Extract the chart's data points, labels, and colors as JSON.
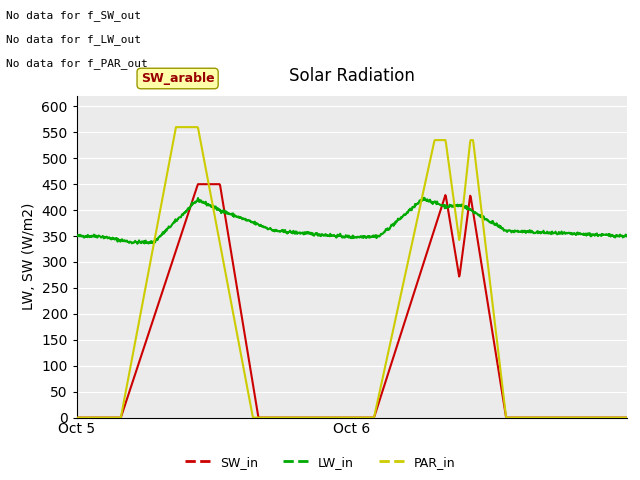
{
  "title": "Solar Radiation",
  "ylabel": "LW, SW (W/m2)",
  "ylim": [
    0,
    620
  ],
  "yticks": [
    0,
    50,
    100,
    150,
    200,
    250,
    300,
    350,
    400,
    450,
    500,
    550,
    600
  ],
  "xtick_labels": [
    "Oct 5",
    "Oct 6"
  ],
  "xtick_positions": [
    0.0,
    0.5
  ],
  "annotations": [
    "No data for f_SW_out",
    "No data for f_LW_out",
    "No data for f_PAR_out"
  ],
  "tooltip_label": "SW_arable",
  "bg_color": "#ebebeb",
  "line_colors": {
    "SW_in": "#cc0000",
    "LW_in": "#00aa00",
    "PAR_in": "#cccc00"
  },
  "legend_entries": [
    "SW_in",
    "LW_in",
    "PAR_in"
  ]
}
